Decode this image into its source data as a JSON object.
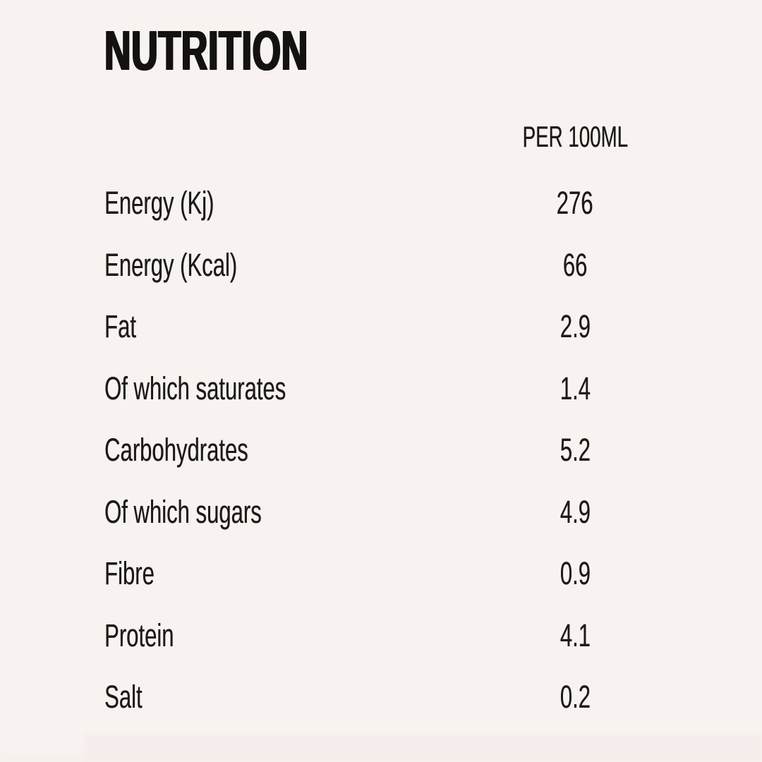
{
  "page": {
    "background_color": "#f8f3f0",
    "text_color": "#1d1b18",
    "title_color": "#141210"
  },
  "title": "NUTRITION",
  "table": {
    "column_header": "PER 100ML",
    "rows": [
      {
        "label": "Energy (Kj)",
        "value": "276"
      },
      {
        "label": "Energy (Kcal)",
        "value": "66"
      },
      {
        "label": "Fat",
        "value": "2.9"
      },
      {
        "label": "Of which saturates",
        "value": "1.4"
      },
      {
        "label": "Carbohydrates",
        "value": "5.2"
      },
      {
        "label": "Of which sugars",
        "value": "4.9"
      },
      {
        "label": "Fibre",
        "value": "0.9"
      },
      {
        "label": "Protein",
        "value": "4.1"
      },
      {
        "label": "Salt",
        "value": "0.2"
      }
    ]
  }
}
